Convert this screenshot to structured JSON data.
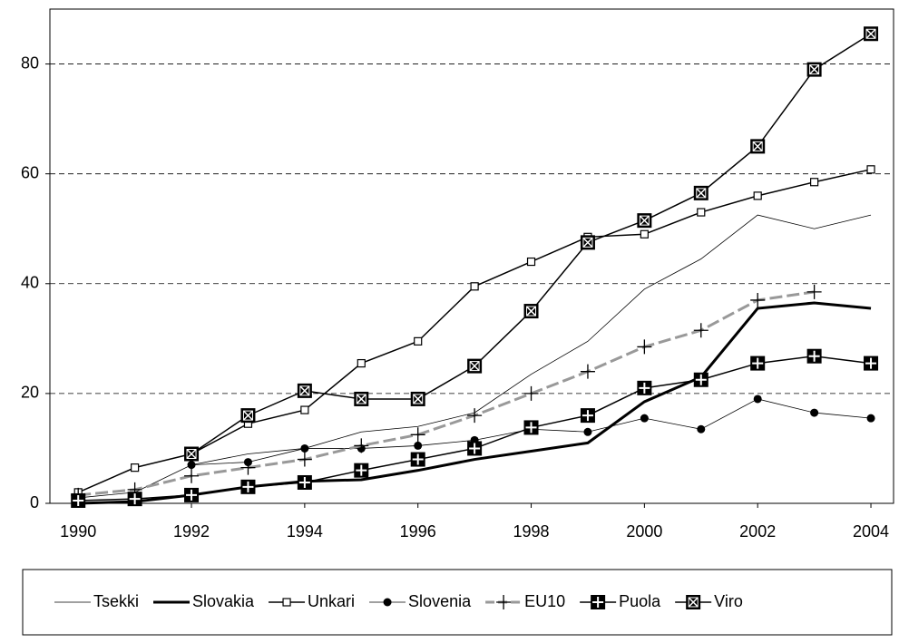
{
  "chart_data": {
    "type": "line",
    "x": [
      1990,
      1991,
      1992,
      1993,
      1994,
      1995,
      1996,
      1997,
      1998,
      1999,
      2000,
      2001,
      2002,
      2003,
      2004
    ],
    "xlim": [
      1989.5,
      2004.4
    ],
    "xticks": [
      1990,
      1992,
      1994,
      1996,
      1998,
      2000,
      2002,
      2004
    ],
    "ylim": [
      0,
      90
    ],
    "yticks": [
      0,
      20,
      40,
      60,
      80
    ],
    "grid": true,
    "series": [
      {
        "name": "Tsekki",
        "color": "#000000",
        "line_width": 0.8,
        "marker": "none",
        "values": [
          1,
          2,
          7,
          9,
          10,
          13,
          14,
          16.5,
          23.5,
          29.5,
          39,
          44.5,
          52.5,
          50,
          52.5
        ]
      },
      {
        "name": "Slovakia",
        "color": "#000000",
        "line_width": 3,
        "marker": "none",
        "values": [
          0,
          0.3,
          1.5,
          3,
          4,
          4.3,
          6,
          8,
          9.5,
          11,
          18.5,
          23,
          35.5,
          36.5,
          35.5
        ]
      },
      {
        "name": "Unkari",
        "color": "#000000",
        "line_width": 1.5,
        "marker": "open-square",
        "values": [
          2,
          6.5,
          9,
          14.5,
          17,
          25.5,
          29.5,
          39.5,
          44,
          48.5,
          49,
          53,
          56,
          58.5,
          60.8
        ]
      },
      {
        "name": "Slovenia",
        "color": "#000000",
        "line_width": 0.8,
        "marker": "dot",
        "values": [
          null,
          null,
          7,
          7.5,
          10,
          10,
          10.5,
          11.5,
          13.5,
          13,
          15.5,
          13.5,
          19,
          16.5,
          15.5
        ]
      },
      {
        "name": "EU10",
        "color": "#999999",
        "line_width": 3,
        "dash": true,
        "marker": "plus",
        "values": [
          1.5,
          2.5,
          5,
          6.5,
          8,
          10.5,
          12.5,
          16,
          20,
          24,
          28.5,
          31.5,
          37,
          38.5,
          null
        ]
      },
      {
        "name": "Puola",
        "color": "#000000",
        "line_width": 1.5,
        "marker": "box-plus",
        "values": [
          0.5,
          0.8,
          1.5,
          3,
          3.8,
          6,
          8,
          10,
          13.8,
          16,
          21,
          22.5,
          25.5,
          26.8,
          25.5
        ]
      },
      {
        "name": "Viro",
        "color": "#000000",
        "line_width": 1.5,
        "marker": "box-x",
        "values": [
          null,
          null,
          9,
          16,
          20.5,
          19,
          19,
          25,
          35,
          47.5,
          51.5,
          56.5,
          65,
          79,
          85.5
        ]
      }
    ]
  }
}
